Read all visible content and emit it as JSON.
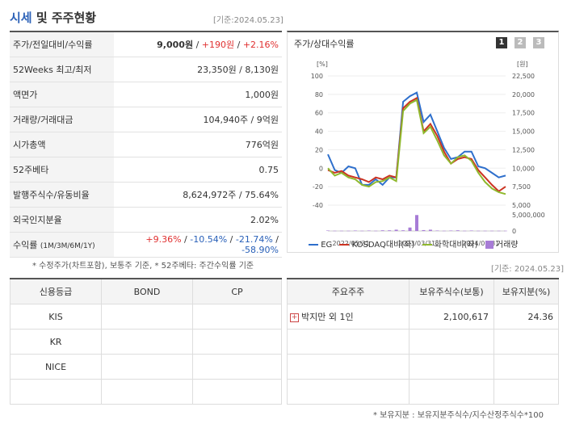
{
  "header": {
    "title_blue": "시세",
    "title_rest": " 및 주주현황",
    "base_date": "[기준:2024.05.23]"
  },
  "stock_rows": [
    {
      "label": "주가/전일대비/수익률",
      "value_price": "9,000원",
      "sep1": " / ",
      "value_change": "+190원",
      "sep2": " / ",
      "value_rate": "+2.16%"
    },
    {
      "label": "52Weeks 최고/최저",
      "value": "23,350원 / 8,130원"
    },
    {
      "label": "액면가",
      "value": "1,000원"
    },
    {
      "label": "거래량/거래대금",
      "value": "104,940주 / 9억원"
    },
    {
      "label": "시가총액",
      "value": "776억원"
    },
    {
      "label": "52주베타",
      "value": "0.75"
    },
    {
      "label": "발행주식수/유동비율",
      "value": "8,624,972주 / 75.64%"
    },
    {
      "label": "외국인지분율",
      "value": "2.02%"
    },
    {
      "label": "수익률",
      "label_sub": "(1M/3M/6M/1Y)",
      "r1": "+9.36%",
      "r2": "-10.54%",
      "r3": "-21.74%",
      "r4": "-58.90%"
    }
  ],
  "stock_note": "* 수정주가(차트포함), 보통주 기준, * 52주베타: 주간수익률 기준",
  "chart_title": "주가/상대수익률",
  "chart_pages": [
    "1",
    "2",
    "3"
  ],
  "chart_base_date": "[기준: 2024.05.23]",
  "chart_data": {
    "type": "line",
    "left_unit": "[%]",
    "right_unit": "[원]",
    "y_left_ticks": [
      "100",
      "80",
      "60",
      "40",
      "20",
      "0",
      "-20",
      "-40"
    ],
    "y_right_ticks": [
      "22,500",
      "20,000",
      "17,500",
      "15,000",
      "12,500",
      "10,000",
      "7,500",
      "5,000"
    ],
    "volume_ticks": [
      "5,000,000",
      "0"
    ],
    "x_ticks": [
      "2022/05/31",
      "2023/03/31",
      "2024/01/31"
    ],
    "ylim_left": [
      -40,
      100
    ],
    "series": [
      {
        "name": "EG",
        "color": "#2e6fcc",
        "values": [
          15,
          -2,
          -5,
          2,
          0,
          -18,
          -18,
          -12,
          -18,
          -10,
          -10,
          72,
          78,
          82,
          50,
          58,
          40,
          22,
          10,
          12,
          18,
          18,
          2,
          0,
          -5,
          -10,
          -8
        ]
      },
      {
        "name": "KOSDAQ대비(좌)",
        "color": "#cc3322",
        "values": [
          -2,
          -5,
          -3,
          -8,
          -10,
          -12,
          -15,
          -10,
          -12,
          -8,
          -10,
          65,
          72,
          76,
          40,
          48,
          35,
          18,
          5,
          10,
          12,
          10,
          -2,
          -10,
          -18,
          -25,
          -20
        ]
      },
      {
        "name": "화학대비(좌)",
        "color": "#8fb82d",
        "values": [
          0,
          -8,
          -5,
          -10,
          -12,
          -18,
          -20,
          -15,
          -14,
          -10,
          -14,
          62,
          70,
          74,
          38,
          45,
          30,
          14,
          5,
          12,
          14,
          8,
          -5,
          -15,
          -22,
          -26,
          -28
        ]
      }
    ],
    "volume": {
      "name": "거래량",
      "color": "#a77cd6",
      "values": [
        0.2,
        0.1,
        0.1,
        0.1,
        0.2,
        0.1,
        0.2,
        0.1,
        0.3,
        0.3,
        0.6,
        0.3,
        1.6,
        7.4,
        0.4,
        0.6,
        0.2,
        0.1,
        0.2,
        0.3,
        0.1,
        0.2,
        0.1,
        0.1,
        0.1,
        0.1,
        0.1
      ]
    }
  },
  "credit": {
    "headers": [
      "신용등급",
      "BOND",
      "CP"
    ],
    "rows": [
      [
        "KIS",
        "",
        ""
      ],
      [
        "KR",
        "",
        ""
      ],
      [
        "NICE",
        "",
        ""
      ],
      [
        "",
        "",
        ""
      ]
    ]
  },
  "holders": {
    "headers": [
      "주요주주",
      "보유주식수(보통)",
      "보유지분(%)"
    ],
    "rows": [
      {
        "name": "박지만 외 1인",
        "shares": "2,100,617",
        "pct": "24.36"
      },
      {
        "name": "",
        "shares": "",
        "pct": ""
      },
      {
        "name": "",
        "shares": "",
        "pct": ""
      },
      {
        "name": "",
        "shares": "",
        "pct": ""
      }
    ],
    "note": "* 보유지분 : 보유지분주식수/지수산정주식수*100"
  }
}
